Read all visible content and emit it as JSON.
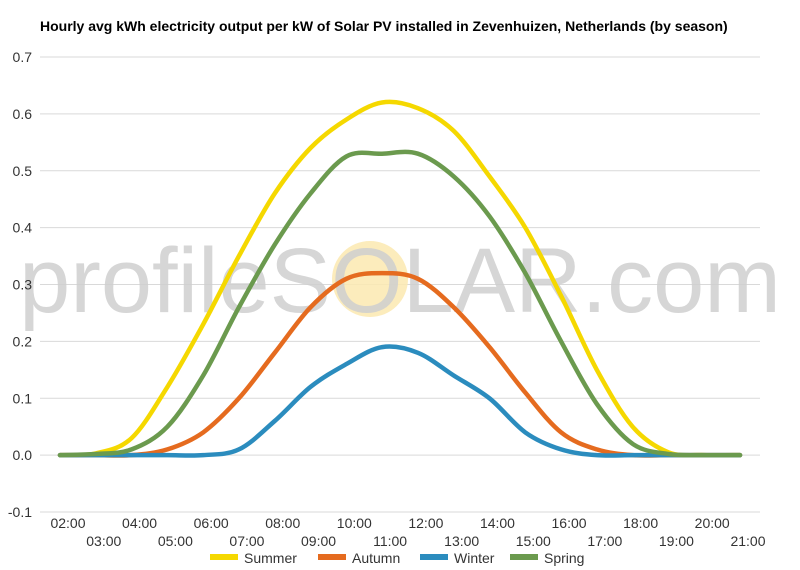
{
  "chart_data": {
    "type": "line",
    "title": "Hourly avg kWh electricity output per kW of Solar PV installed in Zevenhuizen, Netherlands (by season)",
    "xlabel": "",
    "ylabel": "",
    "ylim": [
      -0.1,
      0.7
    ],
    "yticks": [
      "-0.1",
      "0.0",
      "0.1",
      "0.2",
      "0.3",
      "0.4",
      "0.5",
      "0.6",
      "0.7"
    ],
    "x": [
      "02:00",
      "03:00",
      "04:00",
      "05:00",
      "06:00",
      "07:00",
      "08:00",
      "09:00",
      "10:00",
      "11:00",
      "12:00",
      "13:00",
      "14:00",
      "15:00",
      "16:00",
      "17:00",
      "18:00",
      "19:00",
      "20:00",
      "21:00"
    ],
    "series": [
      {
        "name": "Summer",
        "color": "#f5d800",
        "values": [
          0.0,
          0.003,
          0.03,
          0.12,
          0.23,
          0.35,
          0.46,
          0.54,
          0.59,
          0.62,
          0.61,
          0.57,
          0.49,
          0.4,
          0.28,
          0.15,
          0.05,
          0.005,
          0.0,
          0.0
        ]
      },
      {
        "name": "Autumn",
        "color": "#e56b1f",
        "values": [
          0.0,
          0.0,
          0.0,
          0.01,
          0.04,
          0.1,
          0.18,
          0.26,
          0.31,
          0.32,
          0.31,
          0.26,
          0.19,
          0.11,
          0.04,
          0.01,
          0.0,
          0.0,
          0.0,
          0.0
        ]
      },
      {
        "name": "Winter",
        "color": "#2b8cbe",
        "values": [
          0.0,
          0.0,
          0.0,
          0.0,
          0.0,
          0.01,
          0.06,
          0.12,
          0.16,
          0.19,
          0.18,
          0.14,
          0.1,
          0.04,
          0.01,
          0.0,
          0.0,
          0.0,
          0.0,
          0.0
        ]
      },
      {
        "name": "Spring",
        "color": "#6b9a4e",
        "values": [
          0.0,
          0.002,
          0.01,
          0.05,
          0.14,
          0.26,
          0.37,
          0.46,
          0.525,
          0.53,
          0.53,
          0.49,
          0.42,
          0.32,
          0.2,
          0.09,
          0.02,
          0.002,
          0.0,
          0.0
        ]
      }
    ],
    "grid": true,
    "legend": "bottom",
    "watermark": "profileSOLAR.com"
  }
}
